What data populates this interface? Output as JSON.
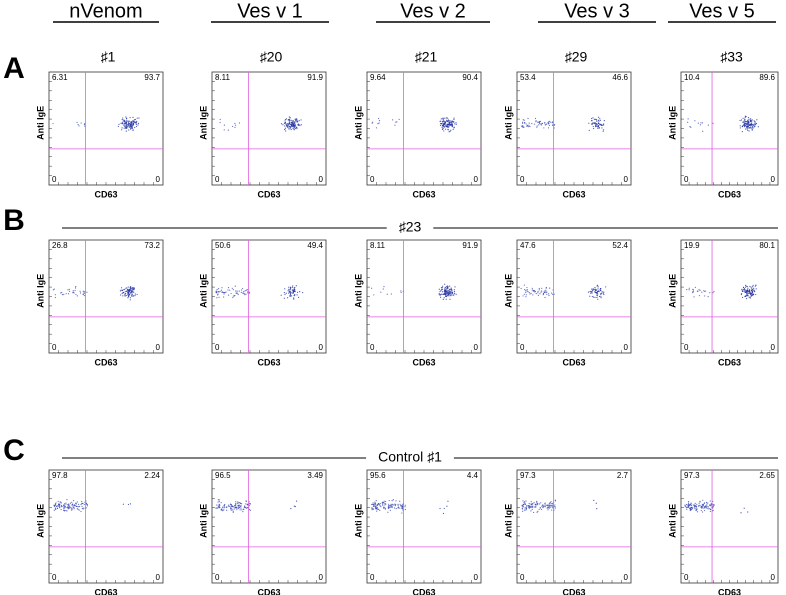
{
  "columns": [
    "nVenom",
    "Ves v 1",
    "Ves v 2",
    "Ves v 3",
    "Ves v 5"
  ],
  "x_label": "CD63",
  "y_label": "Anti IgE",
  "panels": [
    {
      "label": "A",
      "titles": [
        "♯1",
        "♯20",
        "♯21",
        "♯29",
        "♯33"
      ],
      "plots": [
        {
          "ul": 6.31,
          "ur": 93.7,
          "ll": 0,
          "lr": 0
        },
        {
          "ul": 8.11,
          "ur": 91.9,
          "ll": 0,
          "lr": 0
        },
        {
          "ul": 9.64,
          "ur": 90.4,
          "ll": 0,
          "lr": 0
        },
        {
          "ul": 53.4,
          "ur": 46.6,
          "ll": 0,
          "lr": 0
        },
        {
          "ul": 10.4,
          "ur": 89.6,
          "ll": 0,
          "lr": 0
        }
      ]
    },
    {
      "label": "B",
      "title": "♯23",
      "plots": [
        {
          "ul": 26.8,
          "ur": 73.2,
          "ll": 0,
          "lr": 0
        },
        {
          "ul": 50.6,
          "ur": 49.4,
          "ll": 0,
          "lr": 0
        },
        {
          "ul": 8.11,
          "ur": 91.9,
          "ll": 0,
          "lr": 0
        },
        {
          "ul": 47.6,
          "ur": 52.4,
          "ll": 0,
          "lr": 0
        },
        {
          "ul": 19.9,
          "ur": 80.1,
          "ll": 0,
          "lr": 0
        }
      ]
    },
    {
      "label": "C",
      "title": "Control ♯1",
      "plots": [
        {
          "ul": 97.8,
          "ur": 2.24,
          "ll": 0,
          "lr": 0
        },
        {
          "ul": 96.5,
          "ur": 3.49,
          "ll": 0,
          "lr": 0
        },
        {
          "ul": 95.6,
          "ur": 4.4,
          "ll": 0,
          "lr": 0
        },
        {
          "ul": 97.3,
          "ur": 2.7,
          "ll": 0,
          "lr": 0
        },
        {
          "ul": 97.3,
          "ur": 2.65,
          "ll": 0,
          "lr": 0
        }
      ]
    }
  ]
}
